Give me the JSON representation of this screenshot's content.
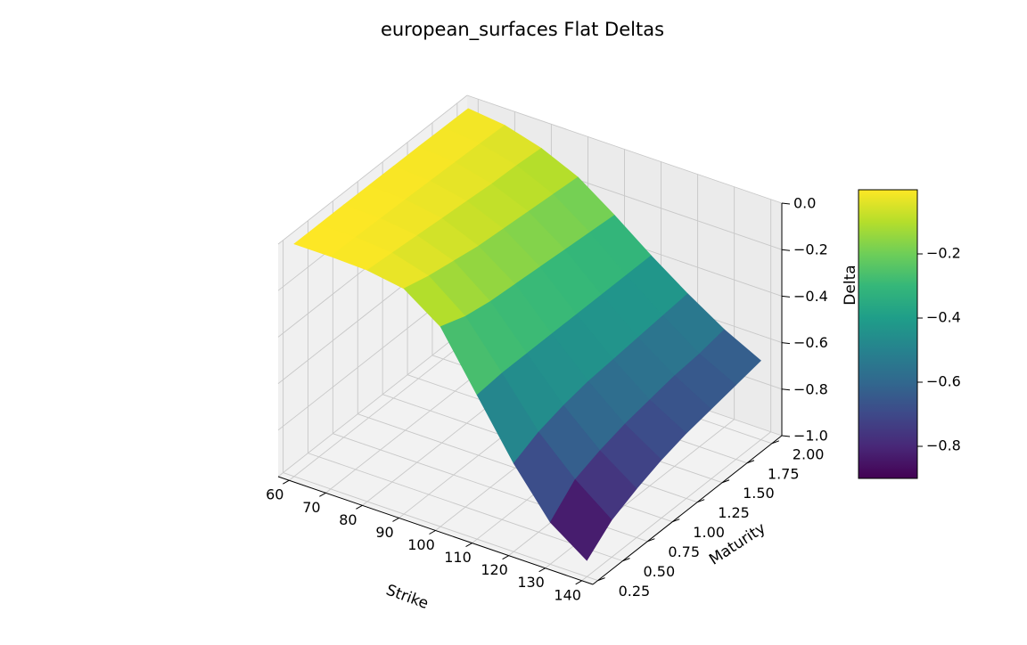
{
  "chart_data": {
    "type": "surface",
    "title": "european_surfaces Flat Deltas",
    "xlabel": "Strike",
    "ylabel": "Maturity",
    "zlabel": "Delta",
    "colormap": "viridis",
    "grid": true,
    "xlim": [
      57,
      143
    ],
    "ylim": [
      0.2,
      2.1
    ],
    "zlim": [
      -1.0,
      0.0
    ],
    "x_ticks": [
      60,
      70,
      80,
      90,
      100,
      110,
      120,
      130,
      140
    ],
    "x_tick_labels": [
      "60",
      "70",
      "80",
      "90",
      "100",
      "110",
      "120",
      "130",
      "140"
    ],
    "y_ticks": [
      0.25,
      0.5,
      0.75,
      1.0,
      1.25,
      1.5,
      1.75,
      2.0
    ],
    "y_tick_labels": [
      "0.25",
      "0.50",
      "0.75",
      "1.00",
      "1.25",
      "1.50",
      "1.75",
      "2.00"
    ],
    "z_ticks": [
      0.0,
      -0.2,
      -0.4,
      -0.6,
      -0.8,
      -1.0
    ],
    "z_tick_labels": [
      "0.0",
      "−0.2",
      "−0.4",
      "−0.6",
      "−0.8",
      "−1.0"
    ],
    "strikes": [
      60,
      70,
      80,
      90,
      100,
      110,
      120,
      130,
      140
    ],
    "maturities": [
      0.25,
      0.5,
      0.75,
      1.0,
      1.25,
      1.5,
      1.75,
      2.0
    ],
    "delta": [
      [
        0.0,
        0.0,
        -0.005,
        -0.03,
        -0.14,
        -0.38,
        -0.62,
        -0.82,
        -0.93
      ],
      [
        0.0,
        -0.002,
        -0.015,
        -0.06,
        -0.18,
        -0.37,
        -0.57,
        -0.72,
        -0.84
      ],
      [
        0.0,
        -0.005,
        -0.025,
        -0.08,
        -0.2,
        -0.37,
        -0.54,
        -0.68,
        -0.79
      ],
      [
        -0.001,
        -0.008,
        -0.035,
        -0.1,
        -0.21,
        -0.37,
        -0.52,
        -0.65,
        -0.75
      ],
      [
        -0.002,
        -0.012,
        -0.045,
        -0.11,
        -0.22,
        -0.37,
        -0.51,
        -0.63,
        -0.72
      ],
      [
        -0.003,
        -0.016,
        -0.055,
        -0.12,
        -0.23,
        -0.37,
        -0.5,
        -0.61,
        -0.7
      ],
      [
        -0.005,
        -0.02,
        -0.06,
        -0.13,
        -0.24,
        -0.37,
        -0.49,
        -0.6,
        -0.68
      ],
      [
        -0.007,
        -0.025,
        -0.07,
        -0.14,
        -0.25,
        -0.37,
        -0.48,
        -0.58,
        -0.66
      ]
    ],
    "colorbar": {
      "range": [
        -0.9,
        0.0
      ],
      "ticks": [
        -0.2,
        -0.4,
        -0.6,
        -0.8
      ],
      "tick_labels": [
        "−0.2",
        "−0.4",
        "−0.6",
        "−0.8"
      ]
    }
  }
}
